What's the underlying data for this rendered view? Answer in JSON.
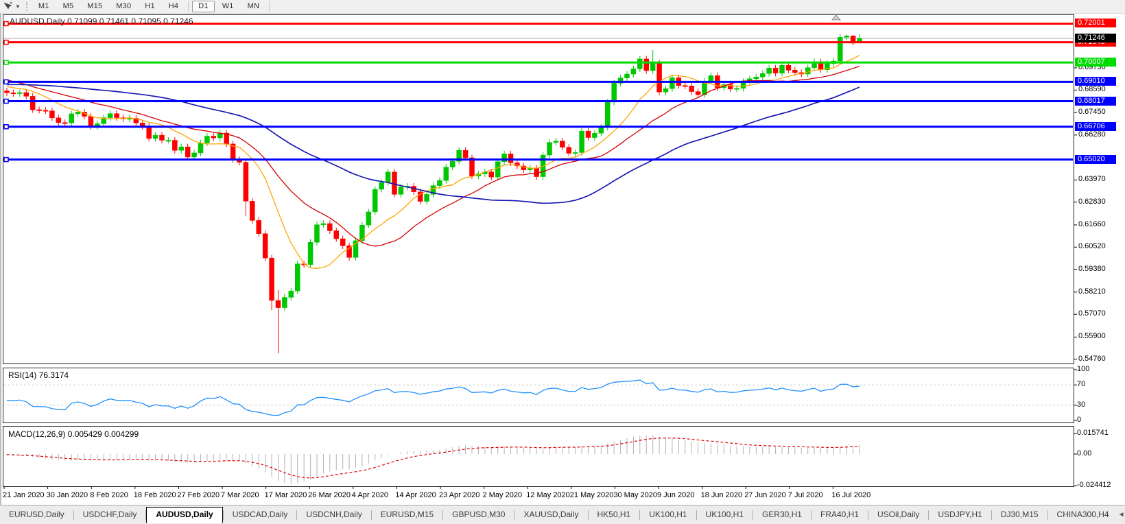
{
  "toolbar": {
    "icons": [
      "cursor-tool-icon",
      "dropdown-caret-icon",
      "toolbar-grip"
    ],
    "timeframes": [
      "M1",
      "M5",
      "M15",
      "M30",
      "H1",
      "H4",
      "D1",
      "W1",
      "MN"
    ],
    "active_timeframe": "D1"
  },
  "chart": {
    "title": "AUDUSD,Daily  0.71099 0.71461 0.71095 0.71246",
    "symbol": "AUDUSD",
    "period": "Daily"
  },
  "rsi_panel": {
    "label": "RSI(14) 76.3174"
  },
  "macd_panel": {
    "label": "MACD(12,26,9) 0.005429 0.004299"
  },
  "tabs": {
    "items": [
      "EURUSD,Daily",
      "USDCHF,Daily",
      "AUDUSD,Daily",
      "USDCAD,Daily",
      "USDCNH,Daily",
      "EURUSD,M15",
      "GBPUSD,M30",
      "XAUUSD,Daily",
      "HK50,H1",
      "UK100,H1",
      "UK100,H1",
      "GER30,H1",
      "FRA40,H1",
      "USOil,Daily",
      "USDJPY,H1",
      "DJ30,M15",
      "CHINA300,H4"
    ],
    "active": "AUDUSD,Daily",
    "active_index": 2,
    "scroll_left": "◄",
    "scroll_right": "►"
  },
  "colors": {
    "bull": "#00C800",
    "bear": "#FF0000",
    "ma_fast": "#FFA500",
    "ma_mid": "#D40000",
    "ma_slow": "#1919B4",
    "rsi_line": "#1E90FF",
    "level_dash": "#C8C8C8",
    "macd_hist": "#B2B2B2",
    "macd_signal": "#E00000",
    "price_line": "#A8A8A8",
    "badge_current": "#000000",
    "pane_border": "#222222"
  },
  "chart_data": {
    "type": "candlestick+indicators",
    "symbol": "AUDUSD",
    "timeframe": "Daily",
    "y_axis": {
      "min": 0.5454,
      "max": 0.723,
      "ticks": [
        0.6973,
        0.6859,
        0.6745,
        0.6628,
        0.6397,
        0.6283,
        0.6166,
        0.6052,
        0.5938,
        0.5821,
        0.5707,
        0.559,
        0.5476
      ]
    },
    "x_axis_labels": [
      "21 Jan 2020",
      "30 Jan 2020",
      "8 Feb 2020",
      "18 Feb 2020",
      "27 Feb 2020",
      "7 Mar 2020",
      "17 Mar 2020",
      "26 Mar 2020",
      "4 Apr 2020",
      "14 Apr 2020",
      "23 Apr 2020",
      "2 May 2020",
      "12 May 2020",
      "21 May 2020",
      "30 May 2020",
      "9 Jun 2020",
      "18 Jun 2020",
      "27 Jun 2020",
      "7 Jul 2020",
      "16 Jul 2020"
    ],
    "pre_closes": [
      0.6862,
      0.684,
      0.6845,
      0.685,
      0.6838,
      0.682,
      0.68,
      0.681,
      0.6825,
      0.684,
      0.6855,
      0.687,
      0.688,
      0.6862,
      0.6845,
      0.6858,
      0.687,
      0.689,
      0.691,
      0.6905,
      0.688,
      0.6862,
      0.685,
      0.6865,
      0.688,
      0.6895,
      0.6912,
      0.693,
      0.6955,
      0.6975,
      0.7,
      0.7022,
      0.6995,
      0.6985,
      0.695,
      0.693,
      0.69,
      0.687,
      0.6885,
      0.69,
      0.692,
      0.6905,
      0.689,
      0.6875,
      0.686,
      0.6885,
      0.6902,
      0.6888,
      0.687,
      0.6855
    ],
    "candles": {
      "closes": [
        0.6845,
        0.6841,
        0.6846,
        0.6827,
        0.6758,
        0.6755,
        0.6752,
        0.6716,
        0.6692,
        0.669,
        0.6737,
        0.6746,
        0.6724,
        0.6671,
        0.6686,
        0.6717,
        0.6738,
        0.6717,
        0.6711,
        0.6714,
        0.669,
        0.6673,
        0.661,
        0.6627,
        0.6601,
        0.6601,
        0.6549,
        0.6567,
        0.6515,
        0.6536,
        0.6587,
        0.6622,
        0.6613,
        0.6638,
        0.6582,
        0.6502,
        0.6488,
        0.6288,
        0.6189,
        0.6121,
        0.5996,
        0.5778,
        0.5741,
        0.5794,
        0.5827,
        0.5966,
        0.5962,
        0.6077,
        0.6167,
        0.6173,
        0.6136,
        0.6095,
        0.6059,
        0.5999,
        0.6085,
        0.6165,
        0.6233,
        0.6349,
        0.6384,
        0.6438,
        0.6323,
        0.6361,
        0.6365,
        0.6336,
        0.6287,
        0.6323,
        0.6368,
        0.6394,
        0.6463,
        0.6493,
        0.6549,
        0.6511,
        0.6417,
        0.6428,
        0.6438,
        0.6412,
        0.6491,
        0.6531,
        0.6485,
        0.6469,
        0.6449,
        0.6458,
        0.6414,
        0.6525,
        0.659,
        0.6597,
        0.6565,
        0.6534,
        0.6538,
        0.6648,
        0.6615,
        0.6637,
        0.6667,
        0.6797,
        0.6894,
        0.6921,
        0.6941,
        0.6968,
        0.7019,
        0.6959,
        0.6999,
        0.6849,
        0.6866,
        0.6922,
        0.6882,
        0.688,
        0.6851,
        0.6835,
        0.6905,
        0.6933,
        0.6871,
        0.6887,
        0.6864,
        0.6868,
        0.6903,
        0.6917,
        0.6926,
        0.6944,
        0.6972,
        0.6946,
        0.6986,
        0.6961,
        0.6949,
        0.6941,
        0.6974,
        0.7004,
        0.6963,
        0.6995,
        0.7008,
        0.713,
        0.7137,
        0.71,
        0.71246
      ],
      "default_wick": 0.0016,
      "overrides": {
        "37": {
          "l": 0.6213
        },
        "41": {
          "l": 0.5728
        },
        "42": {
          "h": 0.5832,
          "l": 0.5506
        },
        "100": {
          "h": 0.7064
        },
        "130": {
          "h": 0.7144
        },
        "131": {
          "h": 0.7141,
          "l": 0.7089
        },
        "132": {
          "o": 0.71099,
          "h": 0.71461,
          "l": 0.71095
        }
      }
    },
    "moving_averages": [
      {
        "name": "fast",
        "period": 10,
        "color_key": "ma_fast"
      },
      {
        "name": "medium",
        "period": 21,
        "color_key": "ma_mid"
      },
      {
        "name": "slow",
        "period": 50,
        "color_key": "ma_slow"
      }
    ],
    "horizontal_lines": [
      {
        "price": 0.72001,
        "color": "#FF0000"
      },
      {
        "price": 0.71046,
        "color": "#FF0000"
      },
      {
        "price": 0.70007,
        "color": "#00DC00"
      },
      {
        "price": 0.6901,
        "color": "#0000FF"
      },
      {
        "price": 0.68017,
        "color": "#0000FF"
      },
      {
        "price": 0.66706,
        "color": "#0000FF"
      },
      {
        "price": 0.6502,
        "color": "#0000FF"
      }
    ],
    "current_price": 0.71246,
    "rsi": {
      "period": 14,
      "last": 76.3174,
      "levels": [
        100,
        70,
        30,
        0
      ],
      "dashed_levels": [
        70,
        30
      ]
    },
    "macd": {
      "fast": 12,
      "slow": 26,
      "signal": 9,
      "last_macd": 0.005429,
      "last_signal": 0.004299,
      "scale_labels": [
        "0.015741",
        "0.00",
        "-0.024412"
      ],
      "scale_values": [
        0.015741,
        0,
        -0.024412
      ]
    }
  }
}
